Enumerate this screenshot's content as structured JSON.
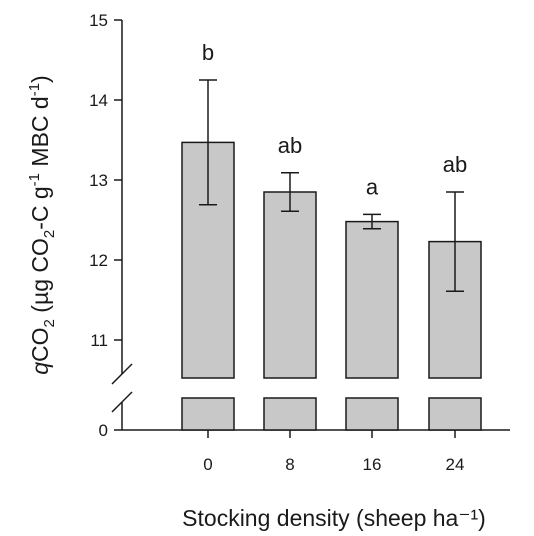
{
  "chart_data": {
    "type": "bar",
    "xlabel": "Stocking density (sheep ha⁻¹)",
    "ylabel_parts": {
      "q": "q",
      "co": "CO",
      "sub2": "2",
      "mid": " (µg CO",
      "sub2b": "2",
      "unit_a": "-C g",
      "sup1": "-1",
      "unit_b": " MBC d",
      "sup2": "-1",
      "close": ")"
    },
    "categories": [
      "0",
      "8",
      "16",
      "24"
    ],
    "values": [
      13.47,
      12.85,
      12.48,
      12.23
    ],
    "error_high": [
      14.25,
      13.09,
      12.57,
      12.85
    ],
    "error_low": [
      12.69,
      12.61,
      12.39,
      11.61
    ],
    "significance": [
      "b",
      "ab",
      "a",
      "ab"
    ],
    "ylim": [
      10.5,
      15
    ],
    "yticks": [
      "11",
      "12",
      "13",
      "14",
      "15"
    ],
    "y_break": true,
    "y_zero_label": "0",
    "grid": false
  }
}
